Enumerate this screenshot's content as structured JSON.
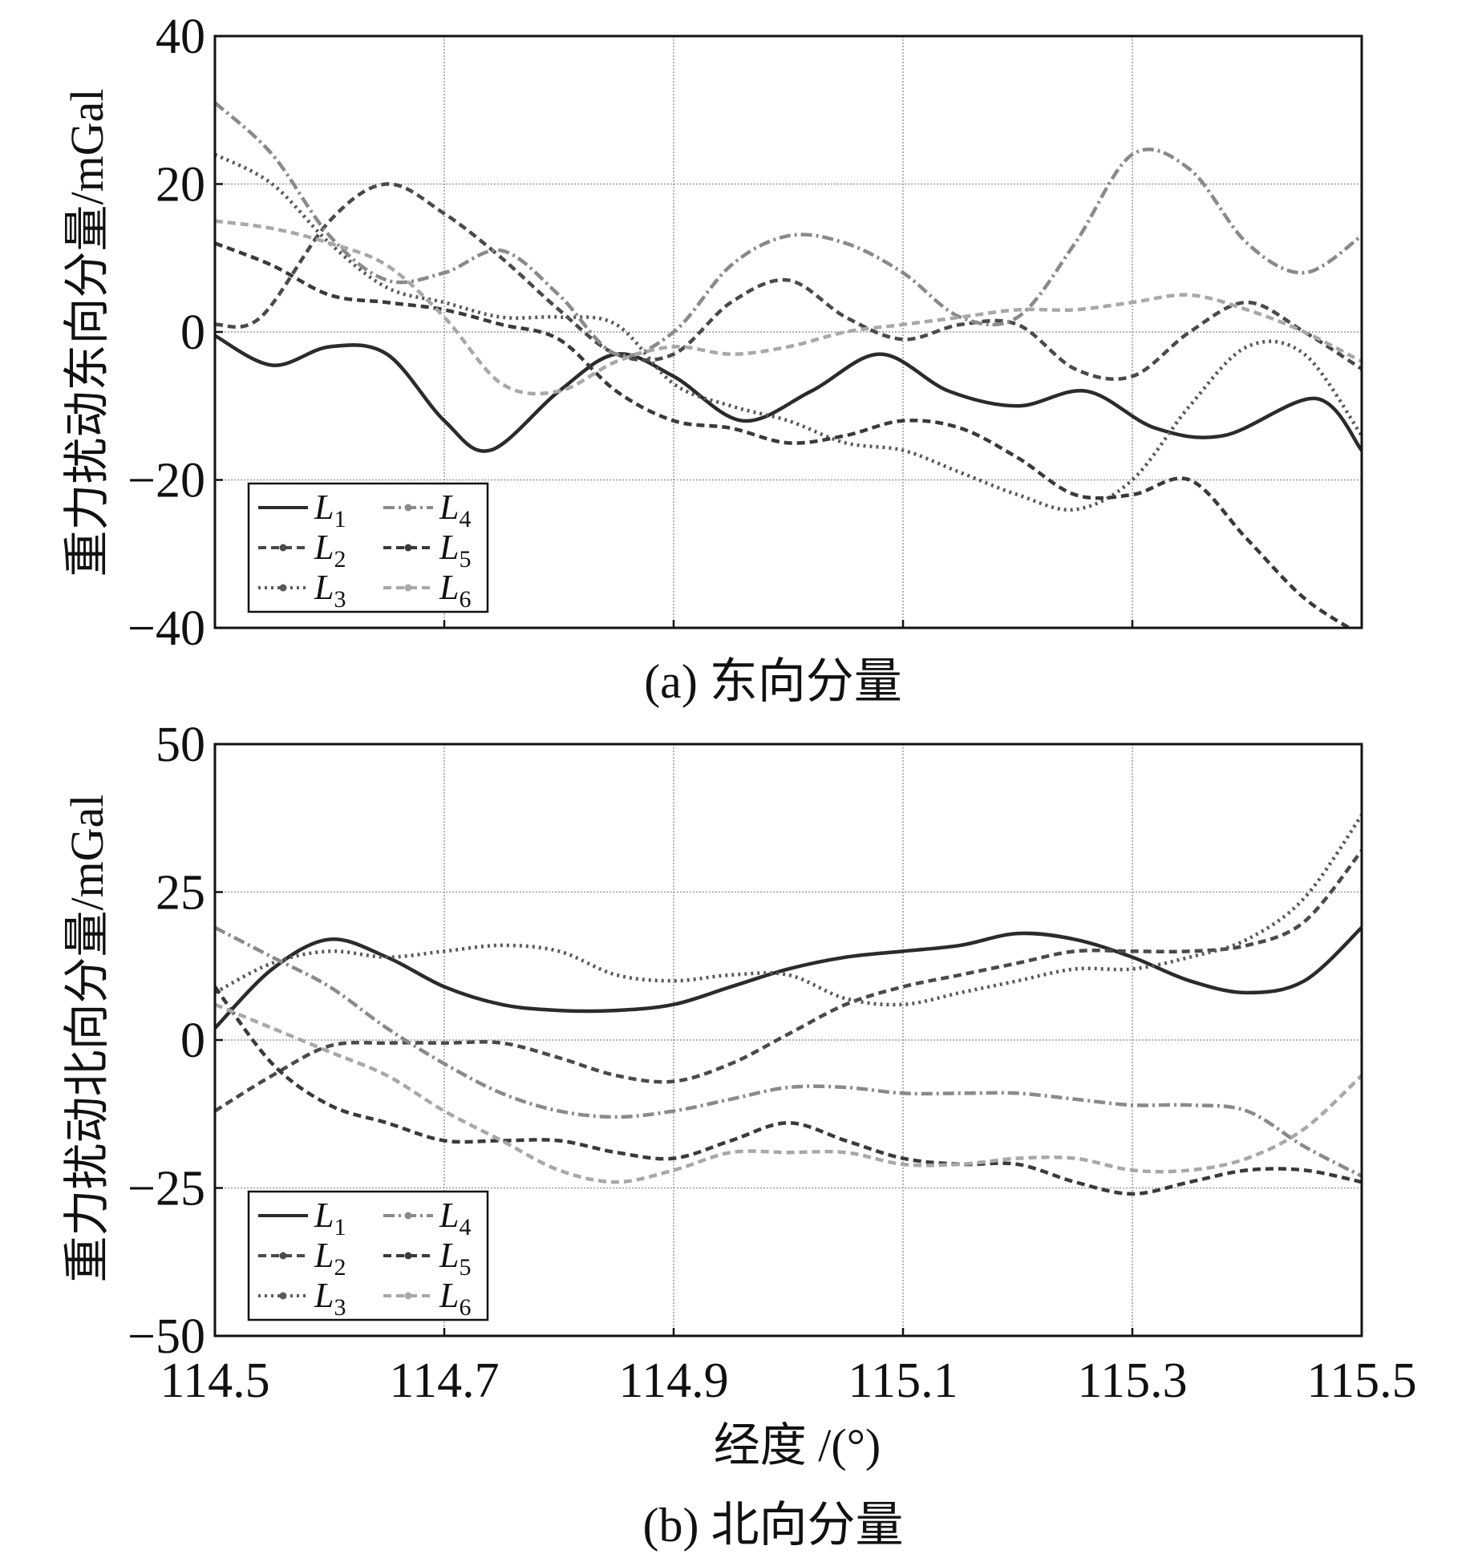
{
  "xlabel": "经度 /(°)",
  "chart_data": [
    {
      "type": "line",
      "caption": "(a) 东向分量",
      "ylabel": "重力扰动东向分量/mGal",
      "xlabel": "经度 /(°)",
      "xlim": [
        114.5,
        115.5
      ],
      "ylim": [
        -40,
        40
      ],
      "xticks": [
        114.5,
        114.7,
        114.9,
        115.1,
        115.3,
        115.5
      ],
      "xtick_labels": [
        "114.5",
        "114.7",
        "114.9",
        "115.1",
        "115.3",
        "115.5"
      ],
      "yticks": [
        -40,
        -20,
        0,
        20,
        40
      ],
      "ytick_labels": [
        "−40",
        "−20",
        "0",
        "20",
        "40"
      ],
      "grid": true,
      "legend_position": "bottom-left",
      "series": [
        {
          "name": "L",
          "sub": "1",
          "color": "#2b2b2b",
          "dash": "solid",
          "x": [
            114.5,
            114.55,
            114.6,
            114.65,
            114.7,
            114.74,
            114.8,
            114.85,
            114.9,
            114.96,
            115.02,
            115.08,
            115.14,
            115.2,
            115.26,
            115.32,
            115.38,
            115.46,
            115.5
          ],
          "y": [
            -0.5,
            -4.5,
            -2,
            -3,
            -12,
            -16,
            -8,
            -3,
            -6,
            -12,
            -8,
            -3,
            -8,
            -10,
            -8,
            -13,
            -14,
            -9,
            -16
          ]
        },
        {
          "name": "L",
          "sub": "2",
          "color": "#4a4a4a",
          "dash": "10,6",
          "x": [
            114.5,
            114.54,
            114.6,
            114.65,
            114.7,
            114.75,
            114.8,
            114.85,
            114.9,
            114.95,
            115.0,
            115.05,
            115.1,
            115.15,
            115.2,
            115.25,
            115.3,
            115.35,
            115.4,
            115.45,
            115.5
          ],
          "y": [
            1,
            2,
            15,
            20,
            16,
            10,
            3,
            -3,
            -3,
            4,
            7,
            2,
            -1,
            1,
            1,
            -5,
            -6,
            0,
            4,
            0,
            -5
          ]
        },
        {
          "name": "L",
          "sub": "3",
          "color": "#5a5a5a",
          "dash": "3,5",
          "x": [
            114.5,
            114.55,
            114.6,
            114.65,
            114.7,
            114.75,
            114.8,
            114.85,
            114.9,
            114.95,
            115.0,
            115.05,
            115.1,
            115.15,
            115.2,
            115.25,
            115.3,
            115.35,
            115.4,
            115.45,
            115.5
          ],
          "y": [
            24,
            20,
            12,
            6,
            4,
            2,
            2,
            1,
            -7,
            -10,
            -12,
            -15,
            -16,
            -19,
            -22,
            -24,
            -20,
            -10,
            -2,
            -3,
            -14
          ]
        },
        {
          "name": "L",
          "sub": "4",
          "color": "#8a8a8a",
          "dash": "14,5,3,5",
          "x": [
            114.5,
            114.55,
            114.6,
            114.65,
            114.7,
            114.75,
            114.8,
            114.85,
            114.9,
            114.95,
            115.0,
            115.05,
            115.1,
            115.15,
            115.2,
            115.25,
            115.3,
            115.35,
            115.4,
            115.45,
            115.5
          ],
          "y": [
            31,
            24,
            13,
            7,
            8,
            11,
            5,
            -3,
            0,
            9,
            13,
            12,
            8,
            2,
            2,
            12,
            24,
            22,
            12,
            8,
            13
          ]
        },
        {
          "name": "L",
          "sub": "5",
          "color": "#3a3a3a",
          "dash": "10,6",
          "x": [
            114.5,
            114.55,
            114.6,
            114.65,
            114.7,
            114.75,
            114.8,
            114.85,
            114.9,
            114.95,
            115.0,
            115.05,
            115.1,
            115.15,
            115.2,
            115.25,
            115.3,
            115.35,
            115.4,
            115.45,
            115.5
          ],
          "y": [
            12,
            9,
            5,
            4,
            3,
            1,
            -1,
            -8,
            -12,
            -13,
            -15,
            -14,
            -12,
            -13,
            -17,
            -22,
            -22,
            -20,
            -28,
            -36,
            -41
          ]
        },
        {
          "name": "L",
          "sub": "6",
          "color": "#a8a8a8",
          "dash": "10,6",
          "x": [
            114.5,
            114.55,
            114.6,
            114.65,
            114.7,
            114.75,
            114.8,
            114.85,
            114.9,
            114.95,
            115.0,
            115.05,
            115.1,
            115.15,
            115.2,
            115.25,
            115.3,
            115.35,
            115.4,
            115.45,
            115.5
          ],
          "y": [
            15,
            14,
            12,
            9,
            2,
            -7,
            -8,
            -4,
            -2,
            -3,
            -2,
            0,
            1,
            2,
            3,
            3,
            4,
            5,
            3,
            0,
            -4
          ]
        }
      ]
    },
    {
      "type": "line",
      "caption": "(b) 北向分量",
      "ylabel": "重力扰动北向分量/mGal",
      "xlabel": "经度 /(°)",
      "xlim": [
        114.5,
        115.5
      ],
      "ylim": [
        -50,
        50
      ],
      "xticks": [
        114.5,
        114.7,
        114.9,
        115.1,
        115.3,
        115.5
      ],
      "xtick_labels": [
        "114.5",
        "114.7",
        "114.9",
        "115.1",
        "115.3",
        "115.5"
      ],
      "yticks": [
        -50,
        -25,
        0,
        25,
        50
      ],
      "ytick_labels": [
        "−50",
        "−25",
        "0",
        "25",
        "50"
      ],
      "grid": true,
      "legend_position": "bottom-left",
      "series": [
        {
          "name": "L",
          "sub": "1",
          "color": "#2b2b2b",
          "dash": "solid",
          "x": [
            114.5,
            114.55,
            114.6,
            114.65,
            114.7,
            114.75,
            114.8,
            114.85,
            114.9,
            114.95,
            115.0,
            115.05,
            115.1,
            115.15,
            115.2,
            115.25,
            115.3,
            115.35,
            115.4,
            115.45,
            115.5
          ],
          "y": [
            2,
            12,
            17,
            14,
            9,
            6,
            5,
            5,
            6,
            9,
            12,
            14,
            15,
            16,
            18,
            17,
            14,
            10,
            8,
            10,
            19
          ]
        },
        {
          "name": "L",
          "sub": "2",
          "color": "#4a4a4a",
          "dash": "10,6",
          "x": [
            114.5,
            114.55,
            114.6,
            114.65,
            114.7,
            114.75,
            114.8,
            114.85,
            114.9,
            114.95,
            115.0,
            115.05,
            115.1,
            115.15,
            115.2,
            115.25,
            115.3,
            115.35,
            115.4,
            115.45,
            115.5
          ],
          "y": [
            -12,
            -6,
            -1,
            -0.5,
            -0.5,
            -0.5,
            -3,
            -6,
            -7,
            -4,
            1,
            6,
            9,
            11,
            13,
            15,
            15,
            15,
            16,
            20,
            32
          ]
        },
        {
          "name": "L",
          "sub": "3",
          "color": "#5a5a5a",
          "dash": "3,5",
          "x": [
            114.5,
            114.55,
            114.6,
            114.65,
            114.7,
            114.75,
            114.8,
            114.85,
            114.9,
            114.95,
            115.0,
            115.05,
            115.1,
            115.15,
            115.2,
            115.25,
            115.3,
            115.35,
            115.4,
            115.45,
            115.5
          ],
          "y": [
            8,
            13,
            15,
            14,
            15,
            16,
            15,
            11,
            10,
            11,
            11,
            7,
            6,
            8,
            10,
            12,
            12,
            14,
            17,
            24,
            38
          ]
        },
        {
          "name": "L",
          "sub": "4",
          "color": "#8a8a8a",
          "dash": "14,5,3,5",
          "x": [
            114.5,
            114.55,
            114.6,
            114.65,
            114.7,
            114.75,
            114.8,
            114.85,
            114.9,
            114.95,
            115.0,
            115.05,
            115.1,
            115.15,
            115.2,
            115.25,
            115.3,
            115.35,
            115.4,
            115.45,
            115.5
          ],
          "y": [
            19,
            14,
            9,
            2,
            -4,
            -9,
            -12,
            -13,
            -12,
            -10,
            -8,
            -8,
            -9,
            -9,
            -9,
            -10,
            -11,
            -11,
            -12,
            -18,
            -23
          ]
        },
        {
          "name": "L",
          "sub": "5",
          "color": "#3a3a3a",
          "dash": "10,6",
          "x": [
            114.5,
            114.55,
            114.6,
            114.65,
            114.7,
            114.75,
            114.8,
            114.85,
            114.9,
            114.95,
            115.0,
            115.05,
            115.1,
            115.15,
            115.2,
            115.25,
            115.3,
            115.35,
            115.4,
            115.45,
            115.5
          ],
          "y": [
            9,
            -4,
            -11,
            -14,
            -17,
            -17,
            -17,
            -19,
            -20,
            -17,
            -14,
            -17,
            -20,
            -21,
            -21,
            -24,
            -26,
            -24,
            -22,
            -22,
            -24
          ]
        },
        {
          "name": "L",
          "sub": "6",
          "color": "#a8a8a8",
          "dash": "10,6",
          "x": [
            114.5,
            114.55,
            114.6,
            114.65,
            114.7,
            114.75,
            114.8,
            114.85,
            114.9,
            114.95,
            115.0,
            115.05,
            115.1,
            115.15,
            115.2,
            115.25,
            115.3,
            115.35,
            115.4,
            115.45,
            115.5
          ],
          "y": [
            6,
            2,
            -2,
            -6,
            -12,
            -17,
            -22,
            -24,
            -22,
            -19,
            -19,
            -19,
            -21,
            -21,
            -20,
            -20,
            -22,
            -22,
            -20,
            -15,
            -6
          ]
        }
      ]
    }
  ]
}
